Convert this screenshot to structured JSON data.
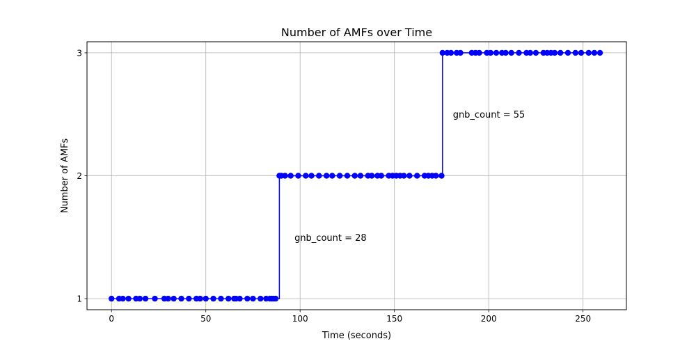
{
  "chart_data": {
    "type": "line",
    "title": "Number of AMFs over Time",
    "xlabel": "Time (seconds)",
    "ylabel": "Number of AMFs",
    "xlim": [
      -13,
      273
    ],
    "ylim": [
      0.91,
      3.09
    ],
    "xticks": [
      0,
      50,
      100,
      150,
      200,
      250
    ],
    "yticks": [
      1,
      2,
      3
    ],
    "grid": true,
    "step": "post",
    "series": [
      {
        "color": "#0000ff",
        "marker": "circle",
        "points": [
          [
            0,
            1
          ],
          [
            4,
            1
          ],
          [
            6,
            1
          ],
          [
            9,
            1
          ],
          [
            13,
            1
          ],
          [
            15,
            1
          ],
          [
            18,
            1
          ],
          [
            23,
            1
          ],
          [
            28,
            1
          ],
          [
            30,
            1
          ],
          [
            33,
            1
          ],
          [
            37,
            1
          ],
          [
            41,
            1
          ],
          [
            45,
            1
          ],
          [
            47,
            1
          ],
          [
            50,
            1
          ],
          [
            54,
            1
          ],
          [
            58,
            1
          ],
          [
            62,
            1
          ],
          [
            65,
            1
          ],
          [
            66,
            1
          ],
          [
            68,
            1
          ],
          [
            72,
            1
          ],
          [
            75,
            1
          ],
          [
            79,
            1
          ],
          [
            82,
            1
          ],
          [
            84,
            1
          ],
          [
            85,
            1
          ],
          [
            86,
            1
          ],
          [
            87,
            1
          ],
          [
            89,
            2
          ],
          [
            90,
            2
          ],
          [
            92,
            2
          ],
          [
            95,
            2
          ],
          [
            99,
            2
          ],
          [
            103,
            2
          ],
          [
            106,
            2
          ],
          [
            110,
            2
          ],
          [
            114,
            2
          ],
          [
            117,
            2
          ],
          [
            121,
            2
          ],
          [
            125,
            2
          ],
          [
            129,
            2
          ],
          [
            132,
            2
          ],
          [
            136,
            2
          ],
          [
            138,
            2
          ],
          [
            141,
            2
          ],
          [
            143,
            2
          ],
          [
            147,
            2
          ],
          [
            149,
            2
          ],
          [
            151,
            2
          ],
          [
            153,
            2
          ],
          [
            155,
            2
          ],
          [
            158,
            2
          ],
          [
            162,
            2
          ],
          [
            166,
            2
          ],
          [
            168,
            2
          ],
          [
            170,
            2
          ],
          [
            172,
            2
          ],
          [
            175,
            2
          ],
          [
            175.5,
            3
          ],
          [
            178,
            3
          ],
          [
            180,
            3
          ],
          [
            183,
            3
          ],
          [
            185,
            3
          ],
          [
            191,
            3
          ],
          [
            193,
            3
          ],
          [
            195,
            3
          ],
          [
            199,
            3
          ],
          [
            201,
            3
          ],
          [
            204,
            3
          ],
          [
            207,
            3
          ],
          [
            209,
            3
          ],
          [
            212,
            3
          ],
          [
            216,
            3
          ],
          [
            220,
            3
          ],
          [
            222,
            3
          ],
          [
            225,
            3
          ],
          [
            229,
            3
          ],
          [
            231,
            3
          ],
          [
            233,
            3
          ],
          [
            235,
            3
          ],
          [
            238,
            3
          ],
          [
            242,
            3
          ],
          [
            246,
            3
          ],
          [
            249,
            3
          ],
          [
            253,
            3
          ],
          [
            256,
            3
          ],
          [
            259,
            3
          ]
        ]
      }
    ],
    "annotations": [
      {
        "text": "gnb_count = 28",
        "x": 97,
        "y": 1.5
      },
      {
        "text": "gnb_count = 55",
        "x": 181,
        "y": 2.5
      }
    ]
  }
}
